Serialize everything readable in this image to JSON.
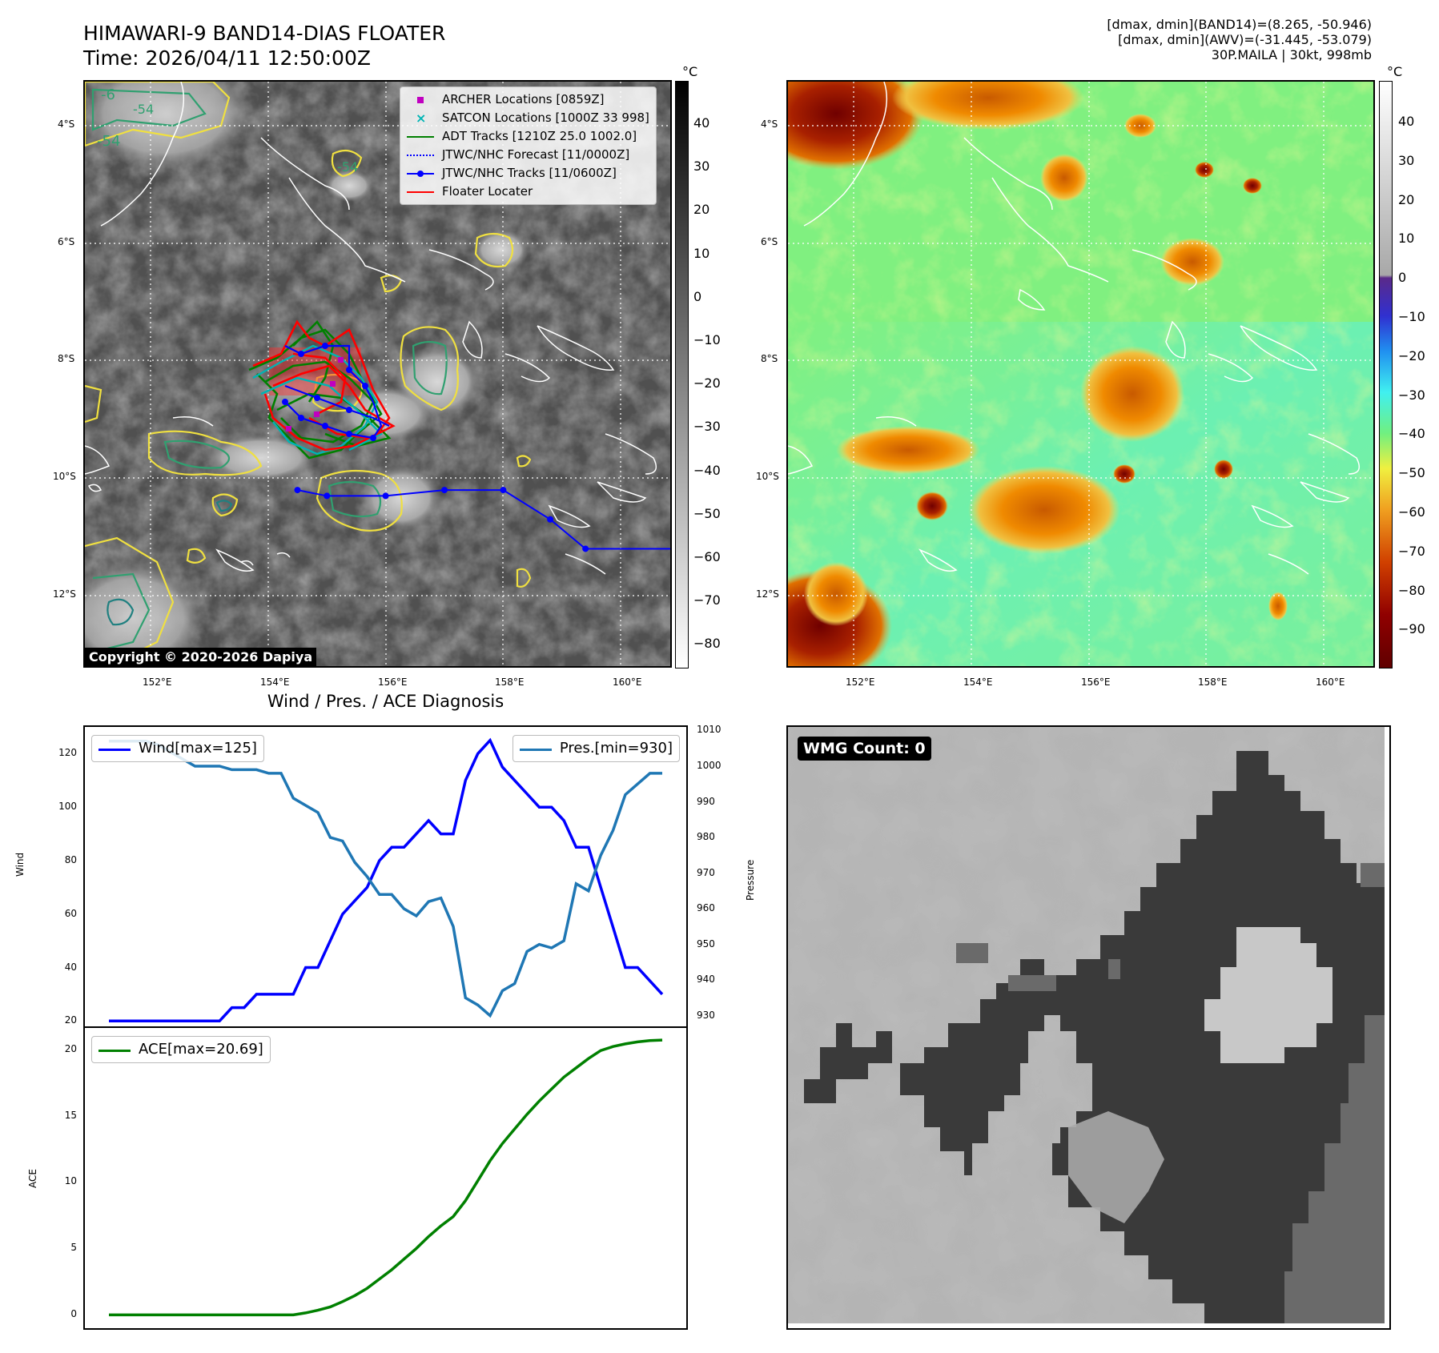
{
  "header": {
    "title_line1": "HIMAWARI-9 BAND14-DIAS FLOATER",
    "title_line2": "Time: 2026/04/11 12:50:00Z",
    "right_line1": "[dmax, dmin](BAND14)=(8.265, -50.946)",
    "right_line2": "[dmax, dmin](AWV)=(-31.445, -53.079)",
    "right_line3": "30P.MAILA | 30kt, 998mb"
  },
  "map_left": {
    "lat_ticks": [
      "4°S",
      "6°S",
      "8°S",
      "10°S",
      "12°S"
    ],
    "lon_ticks": [
      "152°E",
      "154°E",
      "156°E",
      "158°E",
      "160°E"
    ],
    "copyright": "Copyright © 2020-2026 Dapiya",
    "colorbar_unit": "°C",
    "colorbar_ticks": [
      "40",
      "30",
      "20",
      "10",
      "0",
      "−10",
      "−20",
      "−30",
      "−40",
      "−50",
      "−60",
      "−70",
      "−80"
    ],
    "contour_labels": [
      "-54",
      "-54",
      "-6",
      "-54"
    ],
    "legend": [
      {
        "label": "ARCHER Locations [0859Z]",
        "color": "#c000c0",
        "symbol": "square"
      },
      {
        "label": "SATCON Locations [1000Z 33 998]",
        "color": "#00b4b4",
        "symbol": "x"
      },
      {
        "label": "ADT Tracks [1210Z 25.0 1002.0]",
        "color": "#008000",
        "symbol": "line"
      },
      {
        "label": "JTWC/NHC Forecast [11/0000Z]",
        "color": "#0000ff",
        "symbol": "dotted"
      },
      {
        "label": "JTWC/NHC Tracks [11/0600Z]",
        "color": "#0000ff",
        "symbol": "line-dot"
      },
      {
        "label": "Floater Locater",
        "color": "#ff0000",
        "symbol": "line"
      }
    ],
    "forecast_track": [
      {
        "lon": 161.0,
        "lat": -11.2
      },
      {
        "lon": 159.4,
        "lat": -11.2
      },
      {
        "lon": 158.8,
        "lat": -10.7
      },
      {
        "lon": 158.0,
        "lat": -10.2
      },
      {
        "lon": 157.0,
        "lat": -10.2
      },
      {
        "lon": 156.0,
        "lat": -10.3
      },
      {
        "lon": 155.0,
        "lat": -10.3
      },
      {
        "lon": 154.5,
        "lat": -10.2
      }
    ]
  },
  "map_right": {
    "lat_ticks": [
      "4°S",
      "6°S",
      "8°S",
      "10°S",
      "12°S"
    ],
    "lon_ticks": [
      "152°E",
      "154°E",
      "156°E",
      "158°E",
      "160°E"
    ],
    "colorbar_unit": "°C",
    "colorbar_ticks": [
      "40",
      "30",
      "20",
      "10",
      "0",
      "−10",
      "−20",
      "−30",
      "−40",
      "−50",
      "−60",
      "−70",
      "−80",
      "−90"
    ]
  },
  "diagnosis_title": "Wind / Pres. / ACE Diagnosis",
  "chart_data": [
    {
      "type": "line",
      "title": "",
      "ylabel": "Wind",
      "y2label": "Pressure",
      "ylim": [
        18,
        130
      ],
      "y2lim": [
        927,
        1011
      ],
      "yticks": [
        20,
        40,
        60,
        80,
        100,
        120
      ],
      "y2ticks": [
        930,
        940,
        950,
        960,
        970,
        980,
        990,
        1000,
        1010
      ],
      "legend": "top",
      "series": [
        {
          "name": "Wind[max=125]",
          "axis": "left",
          "color": "#0000ff",
          "values": [
            20,
            20,
            20,
            20,
            20,
            20,
            20,
            20,
            20,
            20,
            25,
            25,
            30,
            30,
            30,
            30,
            40,
            40,
            50,
            60,
            65,
            70,
            80,
            85,
            85,
            90,
            95,
            90,
            90,
            110,
            120,
            125,
            115,
            110,
            105,
            100,
            100,
            95,
            85,
            85,
            70,
            55,
            40,
            40,
            35,
            30
          ]
        },
        {
          "name": "Pres.[min=930]",
          "axis": "right",
          "color": "#1f77b4",
          "values": [
            1007,
            1007,
            1007,
            1007,
            1006,
            1004,
            1002,
            1000,
            1000,
            1000,
            999,
            999,
            999,
            998,
            998,
            991,
            989,
            987,
            980,
            979,
            973,
            969,
            964,
            964,
            960,
            958,
            962,
            963,
            955,
            935,
            933,
            930,
            937,
            939,
            948,
            950,
            949,
            951,
            967,
            965,
            975,
            982,
            992,
            995,
            998,
            998
          ]
        }
      ]
    },
    {
      "type": "line",
      "title": "",
      "ylabel": "ACE",
      "ylim": [
        -1,
        21.6
      ],
      "yticks": [
        0,
        5,
        10,
        15,
        20
      ],
      "legend": "top-left",
      "series": [
        {
          "name": "ACE[max=20.69]",
          "color": "#008000",
          "values": [
            0,
            0,
            0,
            0,
            0,
            0,
            0,
            0,
            0,
            0,
            0,
            0,
            0,
            0,
            0,
            0,
            0.15,
            0.35,
            0.6,
            1.0,
            1.45,
            2.0,
            2.7,
            3.4,
            4.2,
            5.0,
            5.9,
            6.7,
            7.4,
            8.6,
            10.1,
            11.6,
            12.9,
            14.0,
            15.1,
            16.1,
            17.0,
            17.9,
            18.6,
            19.3,
            19.9,
            20.2,
            20.4,
            20.55,
            20.65,
            20.69
          ]
        }
      ]
    }
  ],
  "wmg": {
    "label": "WMG Count: 0"
  }
}
